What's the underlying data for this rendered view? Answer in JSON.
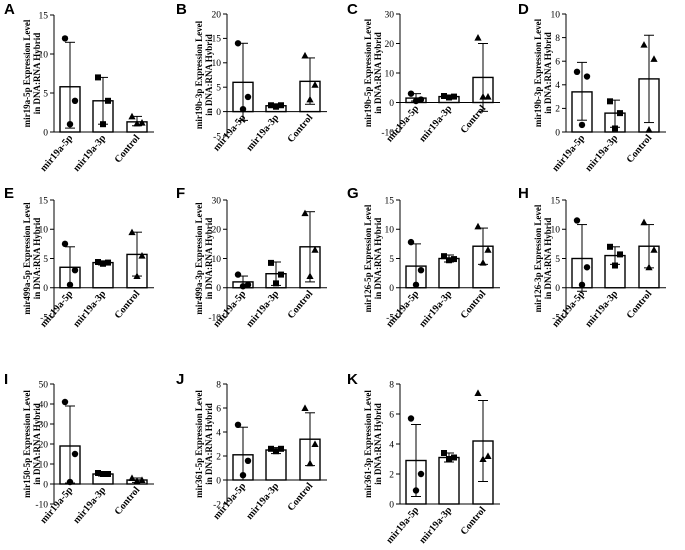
{
  "chart_data": [
    {
      "id": "A",
      "type": "bar",
      "ylabel": [
        "mir19a-5p Expression Level",
        "in DNA:RNA Hybrid"
      ],
      "ylim": [
        0,
        15
      ],
      "yticks": [
        0,
        5,
        10,
        15
      ],
      "categories": [
        "mir19a-5p",
        "mir19a-3p",
        "Control"
      ],
      "values": [
        5.8,
        4.0,
        1.3
      ],
      "err_low": [
        0.5,
        1.0,
        0.8
      ],
      "err_high": [
        11.5,
        7.0,
        2.0
      ],
      "points": [
        [
          12,
          4,
          1
        ],
        [
          7,
          4,
          1
        ],
        [
          2,
          1.2,
          1.1
        ]
      ]
    },
    {
      "id": "B",
      "type": "bar",
      "ylabel": [
        "mir19b-3p Expression Level",
        "in DNA:RNA Hybrid"
      ],
      "ylim": [
        -5,
        20
      ],
      "yticks": [
        -5,
        0,
        5,
        10,
        15,
        20
      ],
      "categories": [
        "mir19a-5p",
        "mir19a-3p",
        "Control"
      ],
      "values": [
        6.0,
        1.2,
        6.2
      ],
      "err_low": [
        -1.8,
        0.9,
        1.5
      ],
      "err_high": [
        14.0,
        1.6,
        11.0
      ],
      "points": [
        [
          14,
          3,
          0.5
        ],
        [
          1.3,
          1.3,
          1.0
        ],
        [
          11.5,
          5.5,
          2.5
        ]
      ]
    },
    {
      "id": "C",
      "type": "bar",
      "ylabel": [
        "mir19b-5p Expression Level",
        "in DNA:RNA Hybrid"
      ],
      "ylim": [
        -10,
        30
      ],
      "yticks": [
        -10,
        0,
        10,
        20,
        30
      ],
      "categories": [
        "mir19a-5p",
        "mir19a-3p",
        "Control"
      ],
      "values": [
        1.5,
        2.0,
        8.5
      ],
      "err_low": [
        0.5,
        1.6,
        -3.0
      ],
      "err_high": [
        3.0,
        2.4,
        20.0
      ],
      "points": [
        [
          3,
          1,
          0.5
        ],
        [
          2.2,
          2,
          1.7
        ],
        [
          22,
          2,
          2
        ]
      ]
    },
    {
      "id": "D",
      "type": "bar",
      "ylabel": [
        "mir19b-3p Expression Level",
        "in DNA:RNA Hybrid"
      ],
      "ylim": [
        0,
        10
      ],
      "yticks": [
        0,
        2,
        4,
        6,
        8,
        10
      ],
      "categories": [
        "mir19a-5p",
        "mir19a-3p",
        "Control"
      ],
      "values": [
        3.4,
        1.6,
        4.5
      ],
      "err_low": [
        1.0,
        0.4,
        0.8
      ],
      "err_high": [
        5.9,
        2.7,
        8.2
      ],
      "points": [
        [
          5.1,
          4.7,
          0.6
        ],
        [
          2.6,
          1.6,
          0.3
        ],
        [
          7.4,
          6.2,
          0.2
        ]
      ]
    },
    {
      "id": "E",
      "type": "bar",
      "ylabel": [
        "mir499a-5p Expression Level",
        "in DNA:RNA Hybrid"
      ],
      "ylim": [
        -5,
        15
      ],
      "yticks": [
        -5,
        0,
        5,
        10,
        15
      ],
      "categories": [
        "mir19a-5p",
        "mir19a-3p",
        "Control"
      ],
      "values": [
        3.5,
        4.3,
        5.7
      ],
      "err_low": [
        0.0,
        3.9,
        2.0
      ],
      "err_high": [
        7.0,
        4.6,
        9.5
      ],
      "points": [
        [
          7.5,
          3,
          0.5
        ],
        [
          4.4,
          4.3,
          4.1
        ],
        [
          9.5,
          5.5,
          2
        ]
      ]
    },
    {
      "id": "F",
      "type": "bar",
      "ylabel": [
        "mir499a-3p Expression Level",
        "in DNA:RNA Hybrid"
      ],
      "ylim": [
        -10,
        30
      ],
      "yticks": [
        -10,
        0,
        10,
        20,
        30
      ],
      "categories": [
        "mir19a-5p",
        "mir19a-3p",
        "Control"
      ],
      "values": [
        2.0,
        4.8,
        14.0
      ],
      "err_low": [
        0.0,
        0.8,
        2.0
      ],
      "err_high": [
        4.0,
        8.8,
        26.0
      ],
      "points": [
        [
          4.5,
          1,
          0.5
        ],
        [
          8.5,
          4.5,
          1.5
        ],
        [
          25.5,
          13,
          4
        ]
      ]
    },
    {
      "id": "G",
      "type": "bar",
      "ylabel": [
        "mir126-5p Expression Level",
        "in DNA:RNA Hybrid"
      ],
      "ylim": [
        -5,
        15
      ],
      "yticks": [
        -5,
        0,
        5,
        10,
        15
      ],
      "categories": [
        "mir19a-5p",
        "mir19a-3p",
        "Control"
      ],
      "values": [
        3.7,
        5.0,
        7.1
      ],
      "err_low": [
        0.0,
        4.4,
        4.0
      ],
      "err_high": [
        7.5,
        5.6,
        10.2
      ],
      "points": [
        [
          7.8,
          3,
          0.5
        ],
        [
          5.4,
          4.9,
          4.7
        ],
        [
          10.5,
          6.5,
          4.3
        ]
      ]
    },
    {
      "id": "H",
      "type": "bar",
      "ylabel": [
        "mir126-3p Expression Level",
        "in DNA:RNA Hybrid"
      ],
      "ylim": [
        -5,
        15
      ],
      "yticks": [
        -5,
        0,
        5,
        10,
        15
      ],
      "categories": [
        "mir19a-5p",
        "mir19a-3p",
        "Control"
      ],
      "values": [
        5.0,
        5.5,
        7.1
      ],
      "err_low": [
        -0.6,
        4.0,
        3.4
      ],
      "err_high": [
        10.8,
        7.0,
        10.8
      ],
      "points": [
        [
          11.5,
          3.5,
          0.5
        ],
        [
          7.0,
          5.7,
          3.8
        ],
        [
          11.2,
          6.5,
          3.5
        ]
      ]
    },
    {
      "id": "I",
      "type": "bar",
      "ylabel": [
        "mir150-5p Expression Level",
        "in DNA:RNA Hybrid"
      ],
      "ylim": [
        -10,
        50
      ],
      "yticks": [
        -10,
        0,
        10,
        20,
        30,
        40,
        50
      ],
      "categories": [
        "mir19a-5p",
        "mir19a-3p",
        "Control"
      ],
      "values": [
        19,
        5,
        2
      ],
      "err_low": [
        0.5,
        4.0,
        0.8
      ],
      "err_high": [
        39,
        6.0,
        3.0
      ],
      "points": [
        [
          41,
          15,
          1
        ],
        [
          5.5,
          5,
          5
        ],
        [
          3,
          2,
          1.5
        ]
      ]
    },
    {
      "id": "J",
      "type": "bar",
      "ylabel": [
        "mir361-5p Expression Level",
        "in DNA:RNA Hybrid"
      ],
      "ylim": [
        -2,
        8
      ],
      "yticks": [
        -2,
        0,
        2,
        4,
        6,
        8
      ],
      "categories": [
        "mir19a-5p",
        "mir19a-3p",
        "Control"
      ],
      "values": [
        2.1,
        2.5,
        3.4
      ],
      "err_low": [
        0.0,
        2.2,
        1.2
      ],
      "err_high": [
        4.4,
        2.7,
        5.6
      ],
      "points": [
        [
          4.6,
          1.6,
          0.4
        ],
        [
          2.6,
          2.6,
          2.4
        ],
        [
          6.0,
          3.0,
          1.4
        ]
      ]
    },
    {
      "id": "K",
      "type": "bar",
      "ylabel": [
        "mir361-3p Expression Level",
        "in DNA:RNA Hybrid"
      ],
      "ylim": [
        0,
        8
      ],
      "yticks": [
        0,
        2,
        4,
        6,
        8
      ],
      "categories": [
        "mir19a-5p",
        "mir19a-3p",
        "Control"
      ],
      "values": [
        2.9,
        3.1,
        4.2
      ],
      "err_low": [
        0.5,
        2.8,
        1.5
      ],
      "err_high": [
        5.3,
        3.4,
        6.9
      ],
      "points": [
        [
          5.7,
          2.0,
          0.9
        ],
        [
          3.4,
          3.1,
          3.0
        ],
        [
          7.4,
          3.2,
          3.0
        ]
      ]
    }
  ]
}
